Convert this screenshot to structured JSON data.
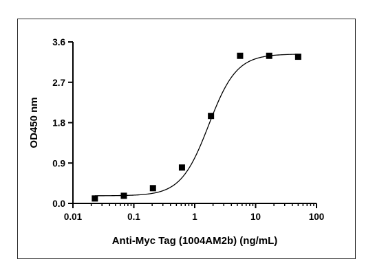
{
  "chart_data": {
    "type": "scatter",
    "xlabel": "Anti-Myc Tag (1004AM2b) (ng/mL)",
    "ylabel": "OD450 nm",
    "x_scale": "log",
    "xlim": [
      0.01,
      100
    ],
    "ylim": [
      0.0,
      3.6
    ],
    "x_ticks": [
      0.01,
      0.1,
      1,
      10,
      100
    ],
    "x_tick_labels": [
      "0.01",
      "0.1",
      "1",
      "10",
      "100"
    ],
    "y_ticks": [
      0.0,
      0.9,
      1.8,
      2.7,
      3.6
    ],
    "y_tick_labels": [
      "0.0",
      "0.9",
      "1.8",
      "2.7",
      "3.6"
    ],
    "grid": false,
    "series": [
      {
        "marker": "square",
        "x": [
          0.0229,
          0.0686,
          0.206,
          0.617,
          1.85,
          5.56,
          16.7,
          50.0
        ],
        "y": [
          0.11,
          0.17,
          0.34,
          0.8,
          1.95,
          3.29,
          3.29,
          3.27
        ]
      }
    ],
    "fit_curve": {
      "model": "4PL",
      "bottom": 0.17,
      "top": 3.33,
      "ec50": 1.7,
      "hill": 1.9
    }
  }
}
